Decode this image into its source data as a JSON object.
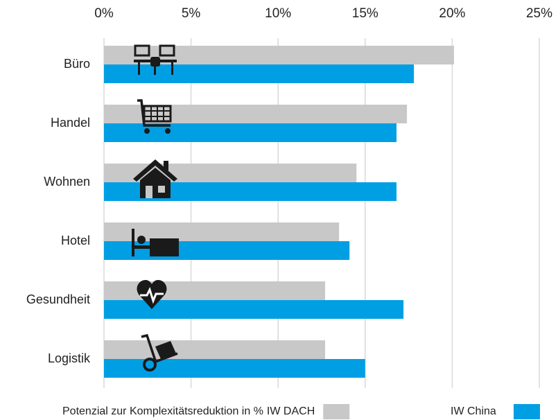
{
  "chart_data": {
    "type": "hbar",
    "categories": [
      "Büro",
      "Handel",
      "Wohnen",
      "Hotel",
      "Gesundheit",
      "Logistik"
    ],
    "series": [
      {
        "name": "IW DACH",
        "color": "#c8c8c8",
        "values": [
          20.1,
          17.4,
          14.5,
          13.5,
          12.7,
          12.7
        ]
      },
      {
        "name": "IW China",
        "color": "#009fe3",
        "values": [
          17.8,
          16.8,
          16.8,
          14.1,
          17.2,
          15.0
        ]
      }
    ],
    "x_label": "Potenzial zur Komplexitätsreduktion in %",
    "xlim": [
      0,
      25
    ],
    "xticks": [
      {
        "value": 0,
        "label": "0%"
      },
      {
        "value": 5,
        "label": "5%"
      },
      {
        "value": 10,
        "label": "10%"
      },
      {
        "value": 15,
        "label": "15%"
      },
      {
        "value": 20,
        "label": "20%"
      },
      {
        "value": 25,
        "label": "25%"
      }
    ],
    "grid": true
  }
}
